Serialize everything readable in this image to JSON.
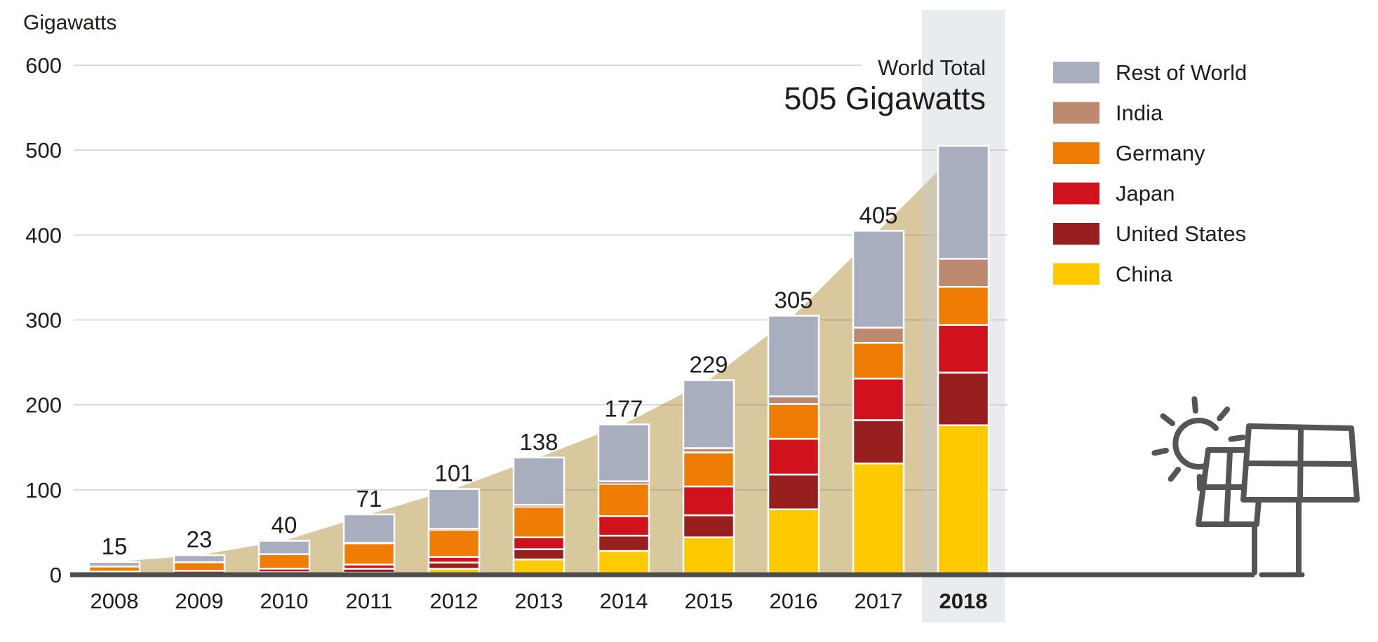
{
  "page": {
    "background": "#ffffff"
  },
  "chart_data": {
    "type": "bar",
    "stacked": true,
    "title": "Gigawatts",
    "ylabel": "Gigawatts",
    "categories": [
      "2008",
      "2009",
      "2010",
      "2011",
      "2012",
      "2013",
      "2014",
      "2015",
      "2016",
      "2017",
      "2018"
    ],
    "highlighted_category": "2018",
    "y_axis": {
      "min": 0,
      "max": 600,
      "tick_step": 100,
      "ticks": [
        0,
        100,
        200,
        300,
        400,
        500,
        600
      ]
    },
    "series": [
      {
        "name": "China",
        "color": "#fdca00",
        "values": [
          0.3,
          0.4,
          1.0,
          3.0,
          7.0,
          18.0,
          28.0,
          44.0,
          77.0,
          131.0,
          176.0
        ]
      },
      {
        "name": "United States",
        "color": "#97201e",
        "values": [
          1.2,
          1.6,
          2.5,
          4.0,
          7.3,
          12.0,
          18.0,
          26.0,
          41.0,
          51.0,
          62.0
        ]
      },
      {
        "name": "Japan",
        "color": "#d0121f",
        "values": [
          2.1,
          2.6,
          3.6,
          5.0,
          6.6,
          14.0,
          23.0,
          34.0,
          42.0,
          49.0,
          56.0
        ]
      },
      {
        "name": "Germany",
        "color": "#ef7d05",
        "values": [
          6.0,
          10.0,
          17.0,
          25.0,
          32.0,
          36.0,
          38.0,
          40.0,
          41.0,
          42.0,
          45.0
        ]
      },
      {
        "name": "India",
        "color": "#bd8a71",
        "values": [
          0.1,
          0.1,
          0.1,
          0.5,
          1.2,
          2.3,
          3.0,
          5.0,
          9.0,
          18.0,
          33.0
        ]
      },
      {
        "name": "Rest of World",
        "color": "#a9aebe",
        "values": [
          5.3,
          8.3,
          15.8,
          33.5,
          46.9,
          55.7,
          67.0,
          80.0,
          95.0,
          114.0,
          133.0
        ]
      }
    ],
    "totals": [
      15,
      23,
      40,
      71,
      101,
      138,
      177,
      229,
      305,
      405,
      505
    ],
    "total_labels": [
      "15",
      "23",
      "40",
      "71",
      "101",
      "138",
      "177",
      "229",
      "305",
      "405"
    ],
    "annotation": {
      "line1": "World Total",
      "line2": "505 Gigawatts"
    },
    "legend": {
      "position": "right",
      "items_top_to_bottom": [
        "Rest of World",
        "India",
        "Germany",
        "Japan",
        "United States",
        "China"
      ]
    },
    "background_area": {
      "description": "world total cumulative area",
      "color": "#d9c79e"
    },
    "grid": true,
    "colors": {
      "highlight_band": "#edeff2",
      "axis_line": "#4d4d4d",
      "gridline": "#d2d2d2",
      "text": "#1d1d1b",
      "icon_stroke": "#555555"
    }
  },
  "icons": {
    "solar_panel": "solar-panels-with-sun"
  }
}
